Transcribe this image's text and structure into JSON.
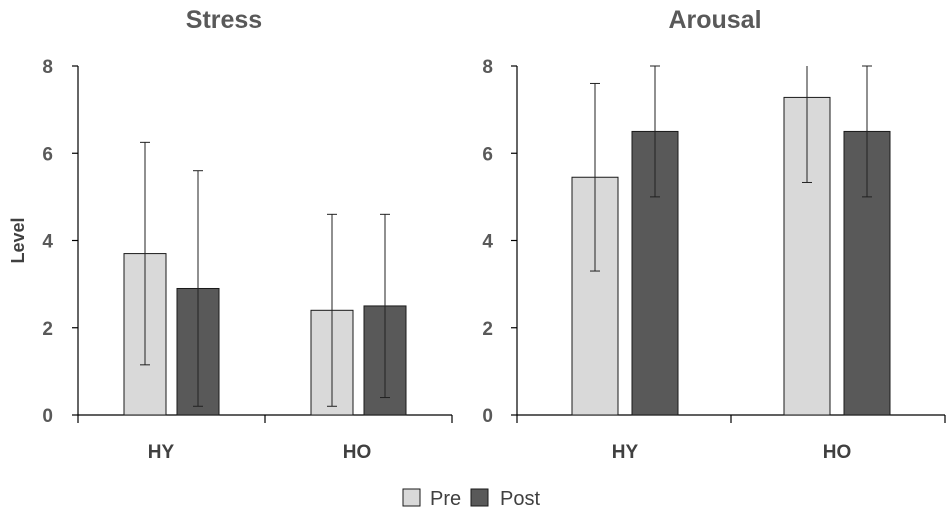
{
  "chart_data": [
    {
      "type": "bar",
      "title": "Stress",
      "ylabel": "Level",
      "xlabel": "",
      "ylim": [
        0,
        8
      ],
      "yticks": [
        "0",
        "2",
        "4",
        "6",
        "8"
      ],
      "categories": [
        "HY",
        "HO"
      ],
      "series": [
        {
          "name": "Pre",
          "color": "#d9d9d9",
          "values": [
            3.7,
            2.4
          ],
          "error": [
            2.55,
            2.2
          ]
        },
        {
          "name": "Post",
          "color": "#595959",
          "values": [
            2.9,
            2.5
          ],
          "error": [
            2.7,
            2.1
          ]
        }
      ],
      "legend_position": "bottom-center",
      "grid": false
    },
    {
      "type": "bar",
      "title": "Arousal",
      "ylabel": "",
      "xlabel": "",
      "ylim": [
        0,
        8
      ],
      "yticks": [
        "0",
        "2",
        "4",
        "6",
        "8"
      ],
      "categories": [
        "HY",
        "HO"
      ],
      "series": [
        {
          "name": "Pre",
          "color": "#d9d9d9",
          "values": [
            5.45,
            7.28
          ],
          "error": [
            2.15,
            1.95
          ]
        },
        {
          "name": "Post",
          "color": "#595959",
          "values": [
            6.5,
            6.5
          ],
          "error": [
            1.5,
            1.5
          ]
        }
      ],
      "legend_position": "bottom-center",
      "grid": false
    }
  ],
  "legend": [
    {
      "label": "Pre",
      "color": "#d9d9d9"
    },
    {
      "label": "Post",
      "color": "#595959"
    }
  ]
}
